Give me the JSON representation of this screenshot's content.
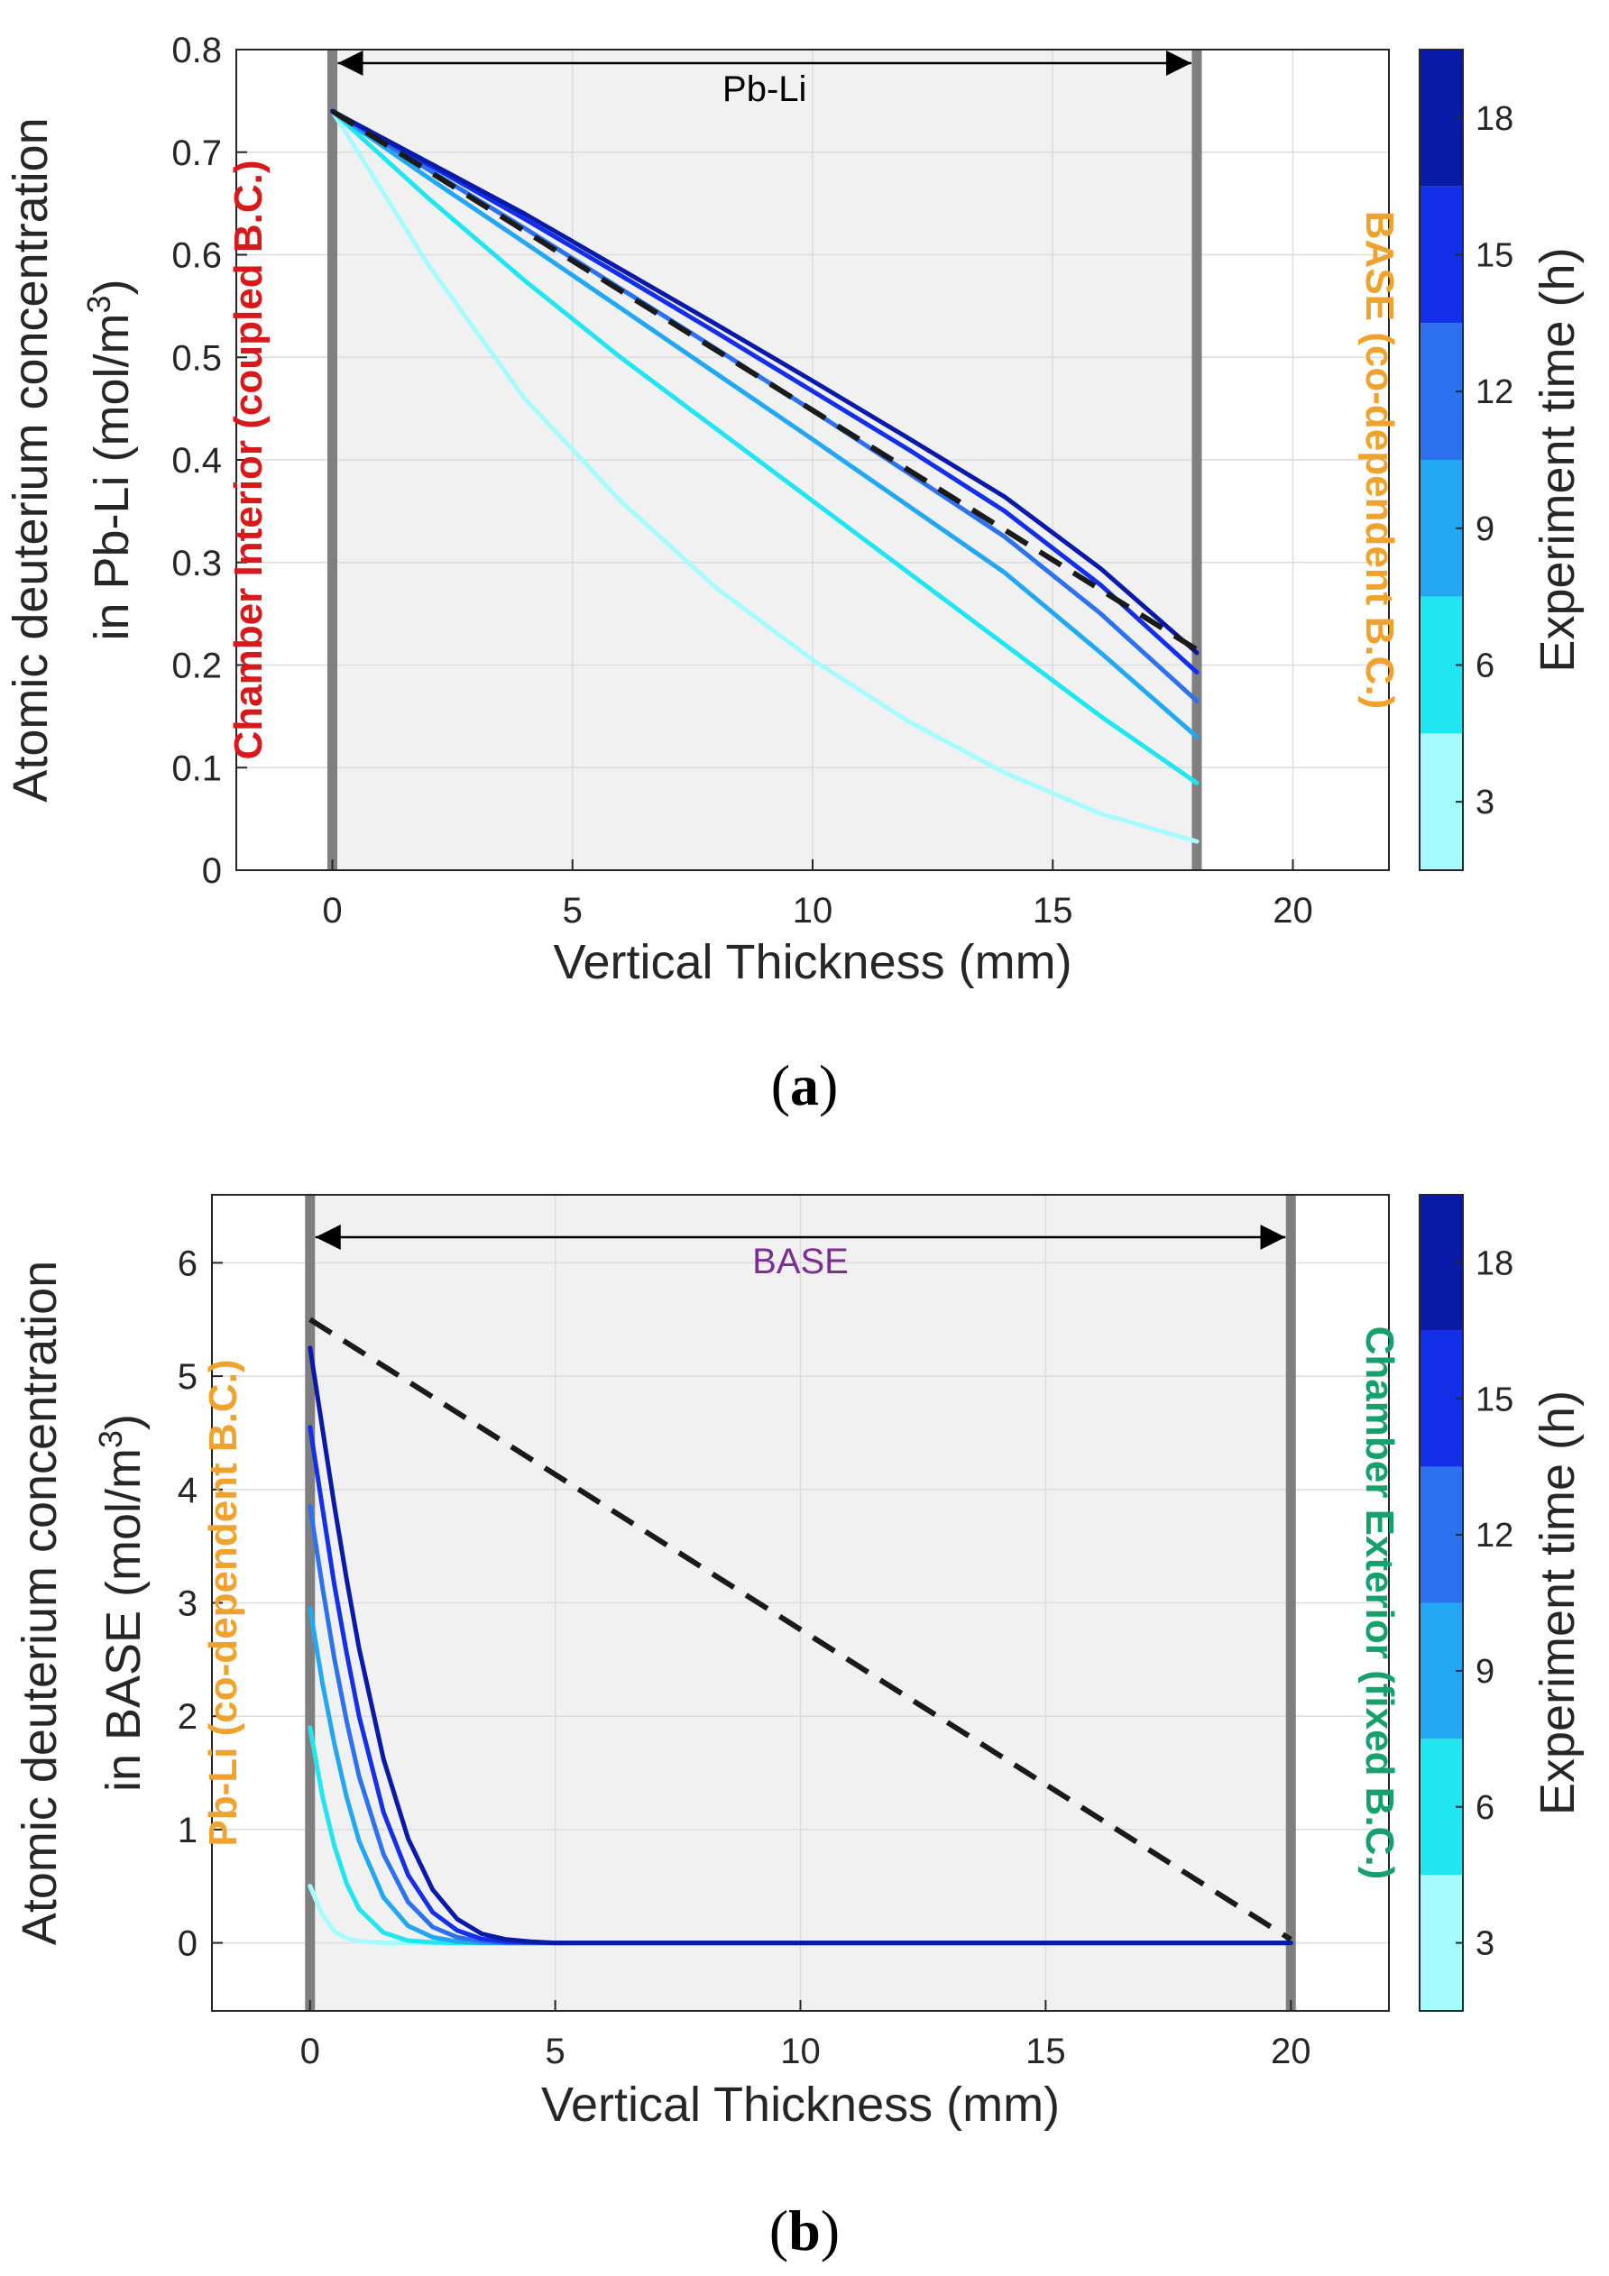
{
  "chart_data": [
    {
      "type": "line",
      "panel_label": "(a)",
      "xlabel": "Vertical Thickness (mm)",
      "ylabel_line1": "Atomic deuterium concentration",
      "ylabel_line2": "in Pb-Li (mol/m",
      "ylabel_sup": "3",
      "ylabel_close": ")",
      "xlim": [
        -2,
        22
      ],
      "ylim": [
        0,
        0.8
      ],
      "xticks": [
        0,
        5,
        10,
        15,
        20
      ],
      "yticks": [
        0,
        0.1,
        0.2,
        0.3,
        0.4,
        0.5,
        0.6,
        0.7,
        0.8
      ],
      "ytick_labels": [
        "0",
        "0.1",
        "0.2",
        "0.3",
        "0.4",
        "0.5",
        "0.6",
        "0.7",
        "0.8"
      ],
      "shaded_region": [
        0,
        18
      ],
      "region_label": "Pb-Li",
      "region_label_color": "#000000",
      "left_boundary_label": "Chamber Interior (coupled B.C.)",
      "left_boundary_color": "#d7191c",
      "right_boundary_label": "BASE (co-dependent B.C.)",
      "right_boundary_color": "#f0a22e",
      "steady_state": {
        "style": "dashed",
        "color": "#1a1a1a",
        "x": [
          0,
          18
        ],
        "y": [
          0.74,
          0.215
        ]
      },
      "series": [
        {
          "name": "3 h",
          "color": "#a6fbff",
          "x": [
            0,
            2,
            4,
            6,
            8,
            10,
            12,
            14,
            16,
            18
          ],
          "y": [
            0.74,
            0.59,
            0.46,
            0.36,
            0.275,
            0.205,
            0.145,
            0.095,
            0.055,
            0.028
          ]
        },
        {
          "name": "6 h",
          "color": "#1fe6f0",
          "x": [
            0,
            2,
            4,
            6,
            8,
            10,
            12,
            14,
            16,
            18
          ],
          "y": [
            0.74,
            0.655,
            0.575,
            0.5,
            0.43,
            0.36,
            0.29,
            0.22,
            0.15,
            0.085
          ]
        },
        {
          "name": "9 h",
          "color": "#22a8f2",
          "x": [
            0,
            2,
            4,
            6,
            8,
            10,
            12,
            14,
            16,
            18
          ],
          "y": [
            0.74,
            0.675,
            0.612,
            0.548,
            0.484,
            0.42,
            0.355,
            0.29,
            0.212,
            0.13
          ]
        },
        {
          "name": "12 h",
          "color": "#2c72f0",
          "x": [
            0,
            2,
            4,
            6,
            8,
            10,
            12,
            14,
            16,
            18
          ],
          "y": [
            0.74,
            0.683,
            0.626,
            0.567,
            0.508,
            0.448,
            0.387,
            0.325,
            0.25,
            0.165
          ]
        },
        {
          "name": "15 h",
          "color": "#1330e8",
          "x": [
            0,
            2,
            4,
            6,
            8,
            10,
            12,
            14,
            16,
            18
          ],
          "y": [
            0.74,
            0.688,
            0.635,
            0.58,
            0.524,
            0.467,
            0.41,
            0.35,
            0.278,
            0.193
          ]
        },
        {
          "name": "18 h",
          "color": "#0a1aa8",
          "x": [
            0,
            2,
            4,
            6,
            8,
            10,
            12,
            14,
            16,
            18
          ],
          "y": [
            0.74,
            0.69,
            0.64,
            0.586,
            0.532,
            0.477,
            0.421,
            0.364,
            0.294,
            0.212
          ]
        }
      ],
      "colorbar": {
        "label": "Experiment time (h)",
        "range": [
          1.5,
          19.5
        ],
        "ticks": [
          3,
          6,
          9,
          12,
          15,
          18
        ],
        "bins": [
          1.5,
          4.5,
          7.5,
          10.5,
          13.5,
          16.5,
          19.5
        ],
        "colors": [
          "#a6fbff",
          "#1fe6f0",
          "#22a8f2",
          "#2c72f0",
          "#1330e8",
          "#0a1aa8"
        ]
      }
    },
    {
      "type": "line",
      "panel_label": "(b)",
      "xlabel": "Vertical Thickness (mm)",
      "ylabel_line1": "Atomic deuterium concentration",
      "ylabel_line2": "in BASE (mol/m",
      "ylabel_sup": "3",
      "ylabel_close": ")",
      "xlim": [
        -2,
        22
      ],
      "ylim": [
        -0.6,
        6.6
      ],
      "xticks": [
        0,
        5,
        10,
        15,
        20
      ],
      "yticks": [
        0,
        1,
        2,
        3,
        4,
        5,
        6
      ],
      "ytick_labels": [
        "0",
        "1",
        "2",
        "3",
        "4",
        "5",
        "6"
      ],
      "shaded_region": [
        0,
        20
      ],
      "region_label": "BASE",
      "region_label_color": "#7b2d91",
      "left_boundary_label": "Pb-Li (co-dependent B.C.)",
      "left_boundary_color": "#f0a22e",
      "right_boundary_label": "Chamber Exterior (fixed B.C.)",
      "right_boundary_color": "#16a06b",
      "steady_state": {
        "style": "dashed",
        "color": "#1a1a1a",
        "x": [
          0,
          20
        ],
        "y": [
          5.5,
          0.03
        ]
      },
      "series": [
        {
          "name": "3 h",
          "color": "#a6fbff",
          "x": [
            0,
            0.25,
            0.5,
            0.75,
            1,
            1.5,
            2,
            3,
            5,
            20
          ],
          "y": [
            0.5,
            0.25,
            0.1,
            0.04,
            0.015,
            0,
            0,
            0,
            0,
            0
          ]
        },
        {
          "name": "6 h",
          "color": "#1fe6f0",
          "x": [
            0,
            0.25,
            0.5,
            0.75,
            1,
            1.5,
            2,
            2.5,
            3,
            5,
            20
          ],
          "y": [
            1.9,
            1.3,
            0.85,
            0.52,
            0.3,
            0.09,
            0.02,
            0.005,
            0,
            0,
            0
          ]
        },
        {
          "name": "9 h",
          "color": "#22a8f2",
          "x": [
            0,
            0.25,
            0.5,
            0.75,
            1,
            1.5,
            2,
            2.5,
            3,
            3.5,
            5,
            20
          ],
          "y": [
            2.95,
            2.3,
            1.75,
            1.28,
            0.9,
            0.4,
            0.15,
            0.05,
            0.012,
            0,
            0,
            0
          ]
        },
        {
          "name": "12 h",
          "color": "#2c72f0",
          "x": [
            0,
            0.25,
            0.5,
            0.75,
            1,
            1.5,
            2,
            2.5,
            3,
            3.5,
            4,
            5,
            20
          ],
          "y": [
            3.85,
            3.15,
            2.5,
            1.95,
            1.47,
            0.78,
            0.36,
            0.14,
            0.05,
            0.015,
            0,
            0,
            0
          ]
        },
        {
          "name": "15 h",
          "color": "#1330e8",
          "x": [
            0,
            0.25,
            0.5,
            0.75,
            1,
            1.5,
            2,
            2.5,
            3,
            3.5,
            4,
            5,
            20
          ],
          "y": [
            4.55,
            3.85,
            3.15,
            2.55,
            2.0,
            1.15,
            0.6,
            0.27,
            0.11,
            0.035,
            0.01,
            0,
            0
          ]
        },
        {
          "name": "18 h",
          "color": "#0a1aa8",
          "x": [
            0,
            0.25,
            0.5,
            0.75,
            1,
            1.5,
            2,
            2.5,
            3,
            3.5,
            4,
            4.5,
            5,
            20
          ],
          "y": [
            5.25,
            4.55,
            3.85,
            3.2,
            2.6,
            1.62,
            0.92,
            0.47,
            0.21,
            0.08,
            0.03,
            0.01,
            0,
            0
          ]
        }
      ],
      "colorbar": {
        "label": "Experiment time (h)",
        "range": [
          1.5,
          19.5
        ],
        "ticks": [
          3,
          6,
          9,
          12,
          15,
          18
        ],
        "bins": [
          1.5,
          4.5,
          7.5,
          10.5,
          13.5,
          16.5,
          19.5
        ],
        "colors": [
          "#a6fbff",
          "#1fe6f0",
          "#22a8f2",
          "#2c72f0",
          "#1330e8",
          "#0a1aa8"
        ]
      }
    }
  ]
}
